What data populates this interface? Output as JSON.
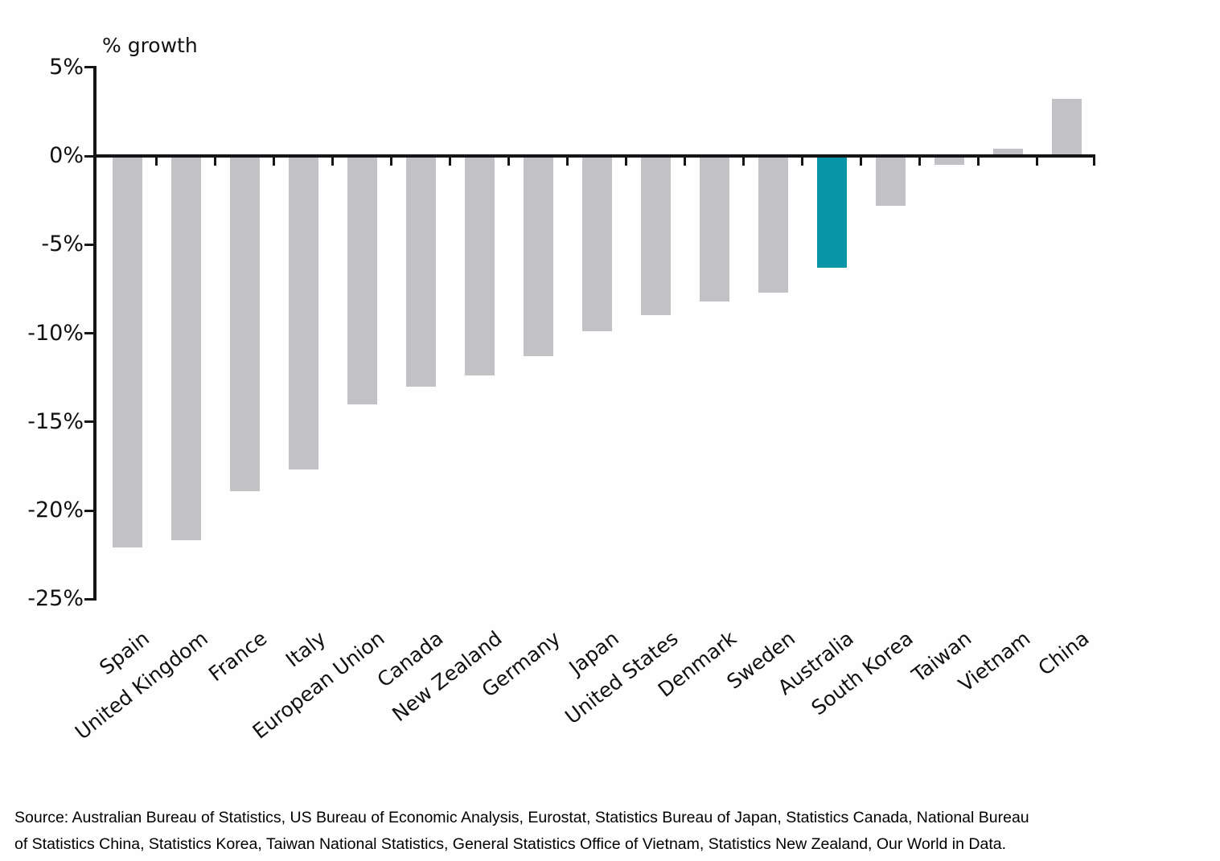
{
  "chart_data": {
    "type": "bar",
    "title": "% growth",
    "categories": [
      "Spain",
      "United Kingdom",
      "France",
      "Italy",
      "European Union",
      "Canada",
      "New Zealand",
      "Germany",
      "Japan",
      "United States",
      "Denmark",
      "Sweden",
      "Australia",
      "South Korea",
      "Taiwan",
      "Vietnam",
      "China"
    ],
    "values": [
      -22.1,
      -21.7,
      -18.9,
      -17.7,
      -14.0,
      -13.0,
      -12.4,
      -11.3,
      -9.9,
      -9.0,
      -8.2,
      -7.7,
      -6.3,
      -2.8,
      -0.5,
      0.4,
      3.2
    ],
    "highlight_category": "Australia",
    "bar_color": "#c2c2c6",
    "highlight_color": "#0895a7",
    "axis_color": "#151518",
    "ylim": [
      -25,
      5
    ],
    "ytick_values": [
      5,
      0,
      -5,
      -10,
      -15,
      -20,
      -25
    ],
    "ytick_labels": [
      "5%",
      "0%",
      "-5%",
      "-10%",
      "-15%",
      "-20%",
      "-25%"
    ],
    "xlabel": "",
    "ylabel": "% growth",
    "grid": false,
    "legend": "none"
  },
  "source": {
    "full": "Source: Australian Bureau of Statistics, US Bureau of Economic Analysis, Eurostat, Statistics Bureau of Japan, Statistics Canada, National Bureau of Statistics China, Statistics Korea, Taiwan National Statistics, General Statistics Office of Vietnam, Statistics New Zealand, Our World in Data.",
    "lines": [
      "Source: Australian Bureau of Statistics, US Bureau of Economic Analysis, Eurostat, Statistics Bureau of Japan, Statistics Canada, National Bureau",
      "of Statistics China, Statistics Korea, Taiwan National Statistics, General Statistics Office of Vietnam, Statistics New Zealand, Our World in Data."
    ]
  }
}
